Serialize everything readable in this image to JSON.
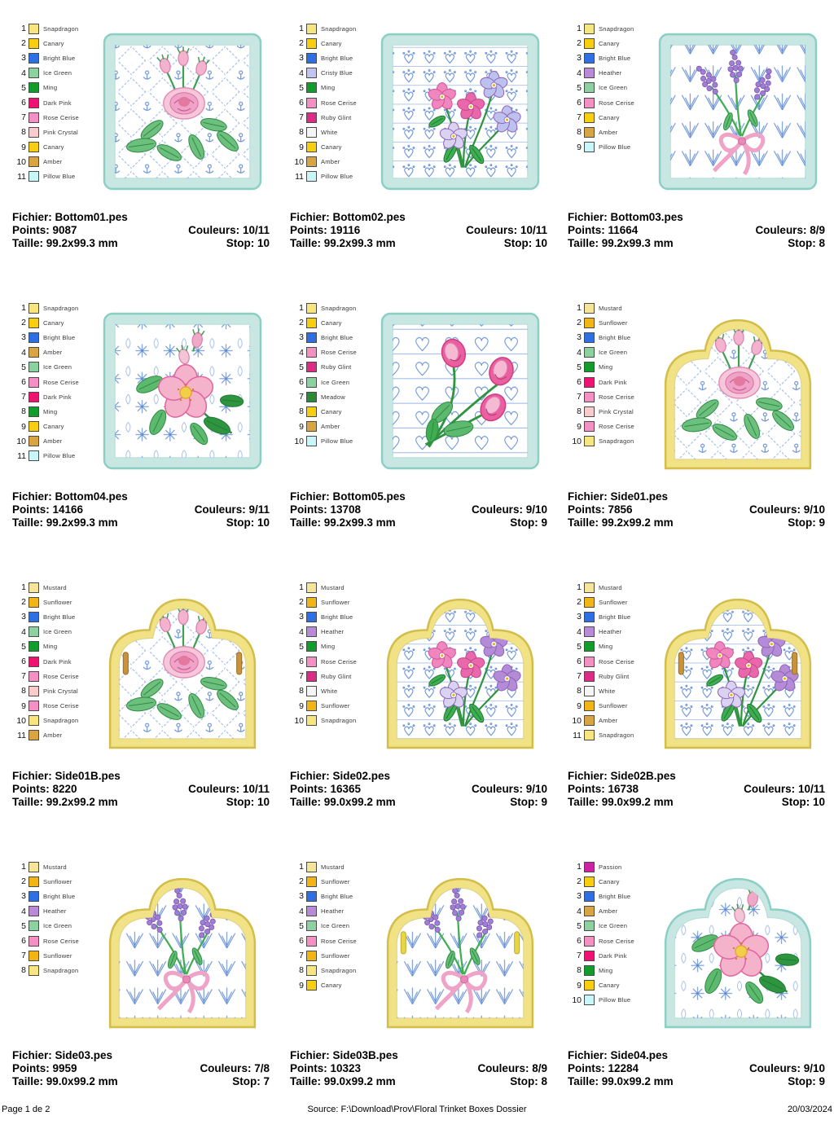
{
  "labels": {
    "fichier": "Fichier:",
    "points": "Points:",
    "taille": "Taille:",
    "couleurs": "Couleurs:",
    "stop": "Stop:"
  },
  "footer": {
    "left": "Page 1 de 2",
    "center": "Source: F:\\Download\\Prov\\Floral Trinket Boxes Dossier",
    "right": "20/03/2024"
  },
  "thread_colors": {
    "Snapdragon": "#f7e57f",
    "Canary": "#f8cf0e",
    "Bright Blue": "#2f6fe4",
    "Ice Green": "#8ed1a0",
    "Ming": "#119c2c",
    "Dark Pink": "#f01270",
    "Rose Cerise": "#f590c5",
    "Pink Crystal": "#f8cbcd",
    "Amber": "#d9a442",
    "Pillow Blue": "#c9f6f8",
    "Cristy Blue": "#c0c4ef",
    "Ruby Glint": "#dd2c86",
    "White": "#f5f5f5",
    "Heather": "#b88ad8",
    "Mustard": "#f5e59b",
    "Sunflower": "#f1b614",
    "Meadow": "#2a8a33",
    "Passion": "#ce22a4"
  },
  "pattern_color": "#5f8bd4",
  "pattern_color_light": "#97b4e4",
  "frame_colors": {
    "mint": {
      "fill": "#c9e7e2",
      "edge": "#8ccfc5",
      "inner": "#b5dcd6"
    },
    "yellow": {
      "fill": "#f1e286",
      "edge": "#d3bd4b",
      "inner": "#ddd08a"
    }
  },
  "buttonhole_colors": {
    "amber": {
      "fill": "#c8933c",
      "edge": "#9a6e22"
    },
    "yellow": {
      "fill": "#e9d645",
      "edge": "#bfae2e"
    }
  },
  "designs": [
    {
      "file": "Bottom01.pes",
      "points": "9087",
      "size": "99.2x99.3 mm",
      "couleurs": "10/11",
      "stop": "10",
      "frame": "mint",
      "shape": "square",
      "pattern": "lattice",
      "motif": "rosespray",
      "buttonholes": "none",
      "threads": [
        "Snapdragon",
        "Canary",
        "Bright Blue",
        "Ice Green",
        "Ming",
        "Dark Pink",
        "Rose Cerise",
        "Pink Crystal",
        "Canary",
        "Amber",
        "Pillow Blue"
      ]
    },
    {
      "file": "Bottom02.pes",
      "points": "19116",
      "size": "99.2x99.3 mm",
      "couleurs": "10/11",
      "stop": "10",
      "frame": "mint",
      "shape": "square",
      "pattern": "fans",
      "motif": "pansy",
      "accent": "#bdc1ee",
      "buttonholes": "none",
      "threads": [
        "Snapdragon",
        "Canary",
        "Bright Blue",
        "Cristy Blue",
        "Ming",
        "Rose Cerise",
        "Ruby Glint",
        "White",
        "Canary",
        "Amber",
        "Pillow Blue"
      ]
    },
    {
      "file": "Bottom03.pes",
      "points": "11664",
      "size": "99.2x99.3 mm",
      "couleurs": "8/9",
      "stop": "8",
      "frame": "mint",
      "shape": "square",
      "pattern": "chevron",
      "motif": "lavender",
      "buttonholes": "none",
      "threads": [
        "Snapdragon",
        "Canary",
        "Bright Blue",
        "Heather",
        "Ice Green",
        "Rose Cerise",
        "Canary",
        "Amber",
        "Pillow Blue"
      ]
    },
    {
      "file": "Bottom04.pes",
      "points": "14166",
      "size": "99.2x99.3 mm",
      "couleurs": "9/11",
      "stop": "10",
      "frame": "mint",
      "shape": "square",
      "pattern": "stars",
      "motif": "wildrose",
      "buttonholes": "none",
      "threads": [
        "Snapdragon",
        "Canary",
        "Bright Blue",
        "Amber",
        "Ice Green",
        "Rose Cerise",
        "Dark Pink",
        "Ming",
        "Canary",
        "Amber",
        "Pillow Blue"
      ]
    },
    {
      "file": "Bottom05.pes",
      "points": "13708",
      "size": "99.2x99.3 mm",
      "couleurs": "9/10",
      "stop": "9",
      "frame": "mint",
      "shape": "square",
      "pattern": "heartlines",
      "motif": "rosetrio",
      "buttonholes": "none",
      "threads": [
        "Snapdragon",
        "Canary",
        "Bright Blue",
        "Rose Cerise",
        "Ruby Glint",
        "Ice Green",
        "Meadow",
        "Canary",
        "Amber",
        "Pillow Blue"
      ]
    },
    {
      "file": "Side01.pes",
      "points": "7856",
      "size": "99.2x99.2 mm",
      "couleurs": "9/10",
      "stop": "9",
      "frame": "yellow",
      "shape": "scallop",
      "pattern": "lattice",
      "motif": "rosespray",
      "buttonholes": "none",
      "threads": [
        "Mustard",
        "Sunflower",
        "Bright Blue",
        "Ice Green",
        "Ming",
        "Dark Pink",
        "Rose Cerise",
        "Pink Crystal",
        "Rose Cerise",
        "Snapdragon"
      ]
    },
    {
      "file": "Side01B.pes",
      "points": "8220",
      "size": "99.2x99.2 mm",
      "couleurs": "10/11",
      "stop": "10",
      "frame": "yellow",
      "shape": "scallop",
      "pattern": "lattice",
      "motif": "rosespray",
      "buttonholes": "amber",
      "threads": [
        "Mustard",
        "Sunflower",
        "Bright Blue",
        "Ice Green",
        "Ming",
        "Dark Pink",
        "Rose Cerise",
        "Pink Crystal",
        "Rose Cerise",
        "Snapdragon",
        "Amber"
      ]
    },
    {
      "file": "Side02.pes",
      "points": "16365",
      "size": "99.0x99.2 mm",
      "couleurs": "9/10",
      "stop": "9",
      "frame": "yellow",
      "shape": "scallop",
      "pattern": "fans",
      "motif": "pansy",
      "accent": "#b48bd6",
      "buttonholes": "none",
      "threads": [
        "Mustard",
        "Sunflower",
        "Bright Blue",
        "Heather",
        "Ming",
        "Rose Cerise",
        "Ruby Glint",
        "White",
        "Sunflower",
        "Snapdragon"
      ]
    },
    {
      "file": "Side02B.pes",
      "points": "16738",
      "size": "99.0x99.2 mm",
      "couleurs": "10/11",
      "stop": "10",
      "frame": "yellow",
      "shape": "scallop",
      "pattern": "fans",
      "motif": "pansy",
      "accent": "#b48bd6",
      "buttonholes": "amber",
      "threads": [
        "Mustard",
        "Sunflower",
        "Bright Blue",
        "Heather",
        "Ming",
        "Rose Cerise",
        "Ruby Glint",
        "White",
        "Sunflower",
        "Amber",
        "Snapdragon"
      ]
    },
    {
      "file": "Side03.pes",
      "points": "9959",
      "size": "99.0x99.2 mm",
      "couleurs": "7/8",
      "stop": "7",
      "frame": "yellow",
      "shape": "scallop",
      "pattern": "chevron",
      "motif": "lavender",
      "buttonholes": "none",
      "threads": [
        "Mustard",
        "Sunflower",
        "Bright Blue",
        "Heather",
        "Ice Green",
        "Rose Cerise",
        "Sunflower",
        "Snapdragon"
      ]
    },
    {
      "file": "Side03B.pes",
      "points": "10323",
      "size": "99.0x99.2 mm",
      "couleurs": "8/9",
      "stop": "8",
      "frame": "yellow",
      "shape": "scallop",
      "pattern": "chevron",
      "motif": "lavender",
      "buttonholes": "yellow",
      "threads": [
        "Mustard",
        "Sunflower",
        "Bright Blue",
        "Heather",
        "Ice Green",
        "Rose Cerise",
        "Sunflower",
        "Snapdragon",
        "Canary"
      ]
    },
    {
      "file": "Side04.pes",
      "points": "12284",
      "size": "99.0x99.2 mm",
      "couleurs": "9/10",
      "stop": "9",
      "frame": "mint",
      "shape": "scallop",
      "pattern": "stars",
      "motif": "wildrose",
      "buttonholes": "none",
      "threads": [
        "Passion",
        "Canary",
        "Bright Blue",
        "Amber",
        "Ice Green",
        "Rose Cerise",
        "Dark Pink",
        "Ming",
        "Canary",
        "Pillow Blue"
      ]
    }
  ]
}
